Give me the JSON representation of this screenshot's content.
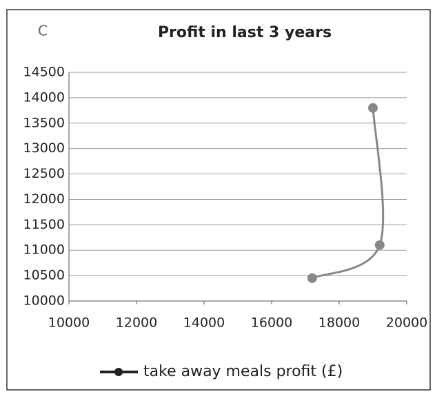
{
  "chart_data": {
    "type": "scatter",
    "panel_label": "C",
    "title": "Profit in last 3 years",
    "series": [
      {
        "name": "take away meals profit (£)",
        "color": "#888888",
        "x": [
          17200,
          19200,
          19000
        ],
        "values": [
          10450,
          11100,
          13800
        ]
      }
    ],
    "xlim": [
      10000,
      20000
    ],
    "xticks": [
      10000,
      12000,
      14000,
      16000,
      18000,
      20000
    ],
    "ylim": [
      10000,
      14500
    ],
    "yticks": [
      10000,
      10500,
      11000,
      11500,
      12000,
      12500,
      13000,
      13500,
      14000,
      14500
    ],
    "grid": true,
    "legend": "bottom"
  }
}
